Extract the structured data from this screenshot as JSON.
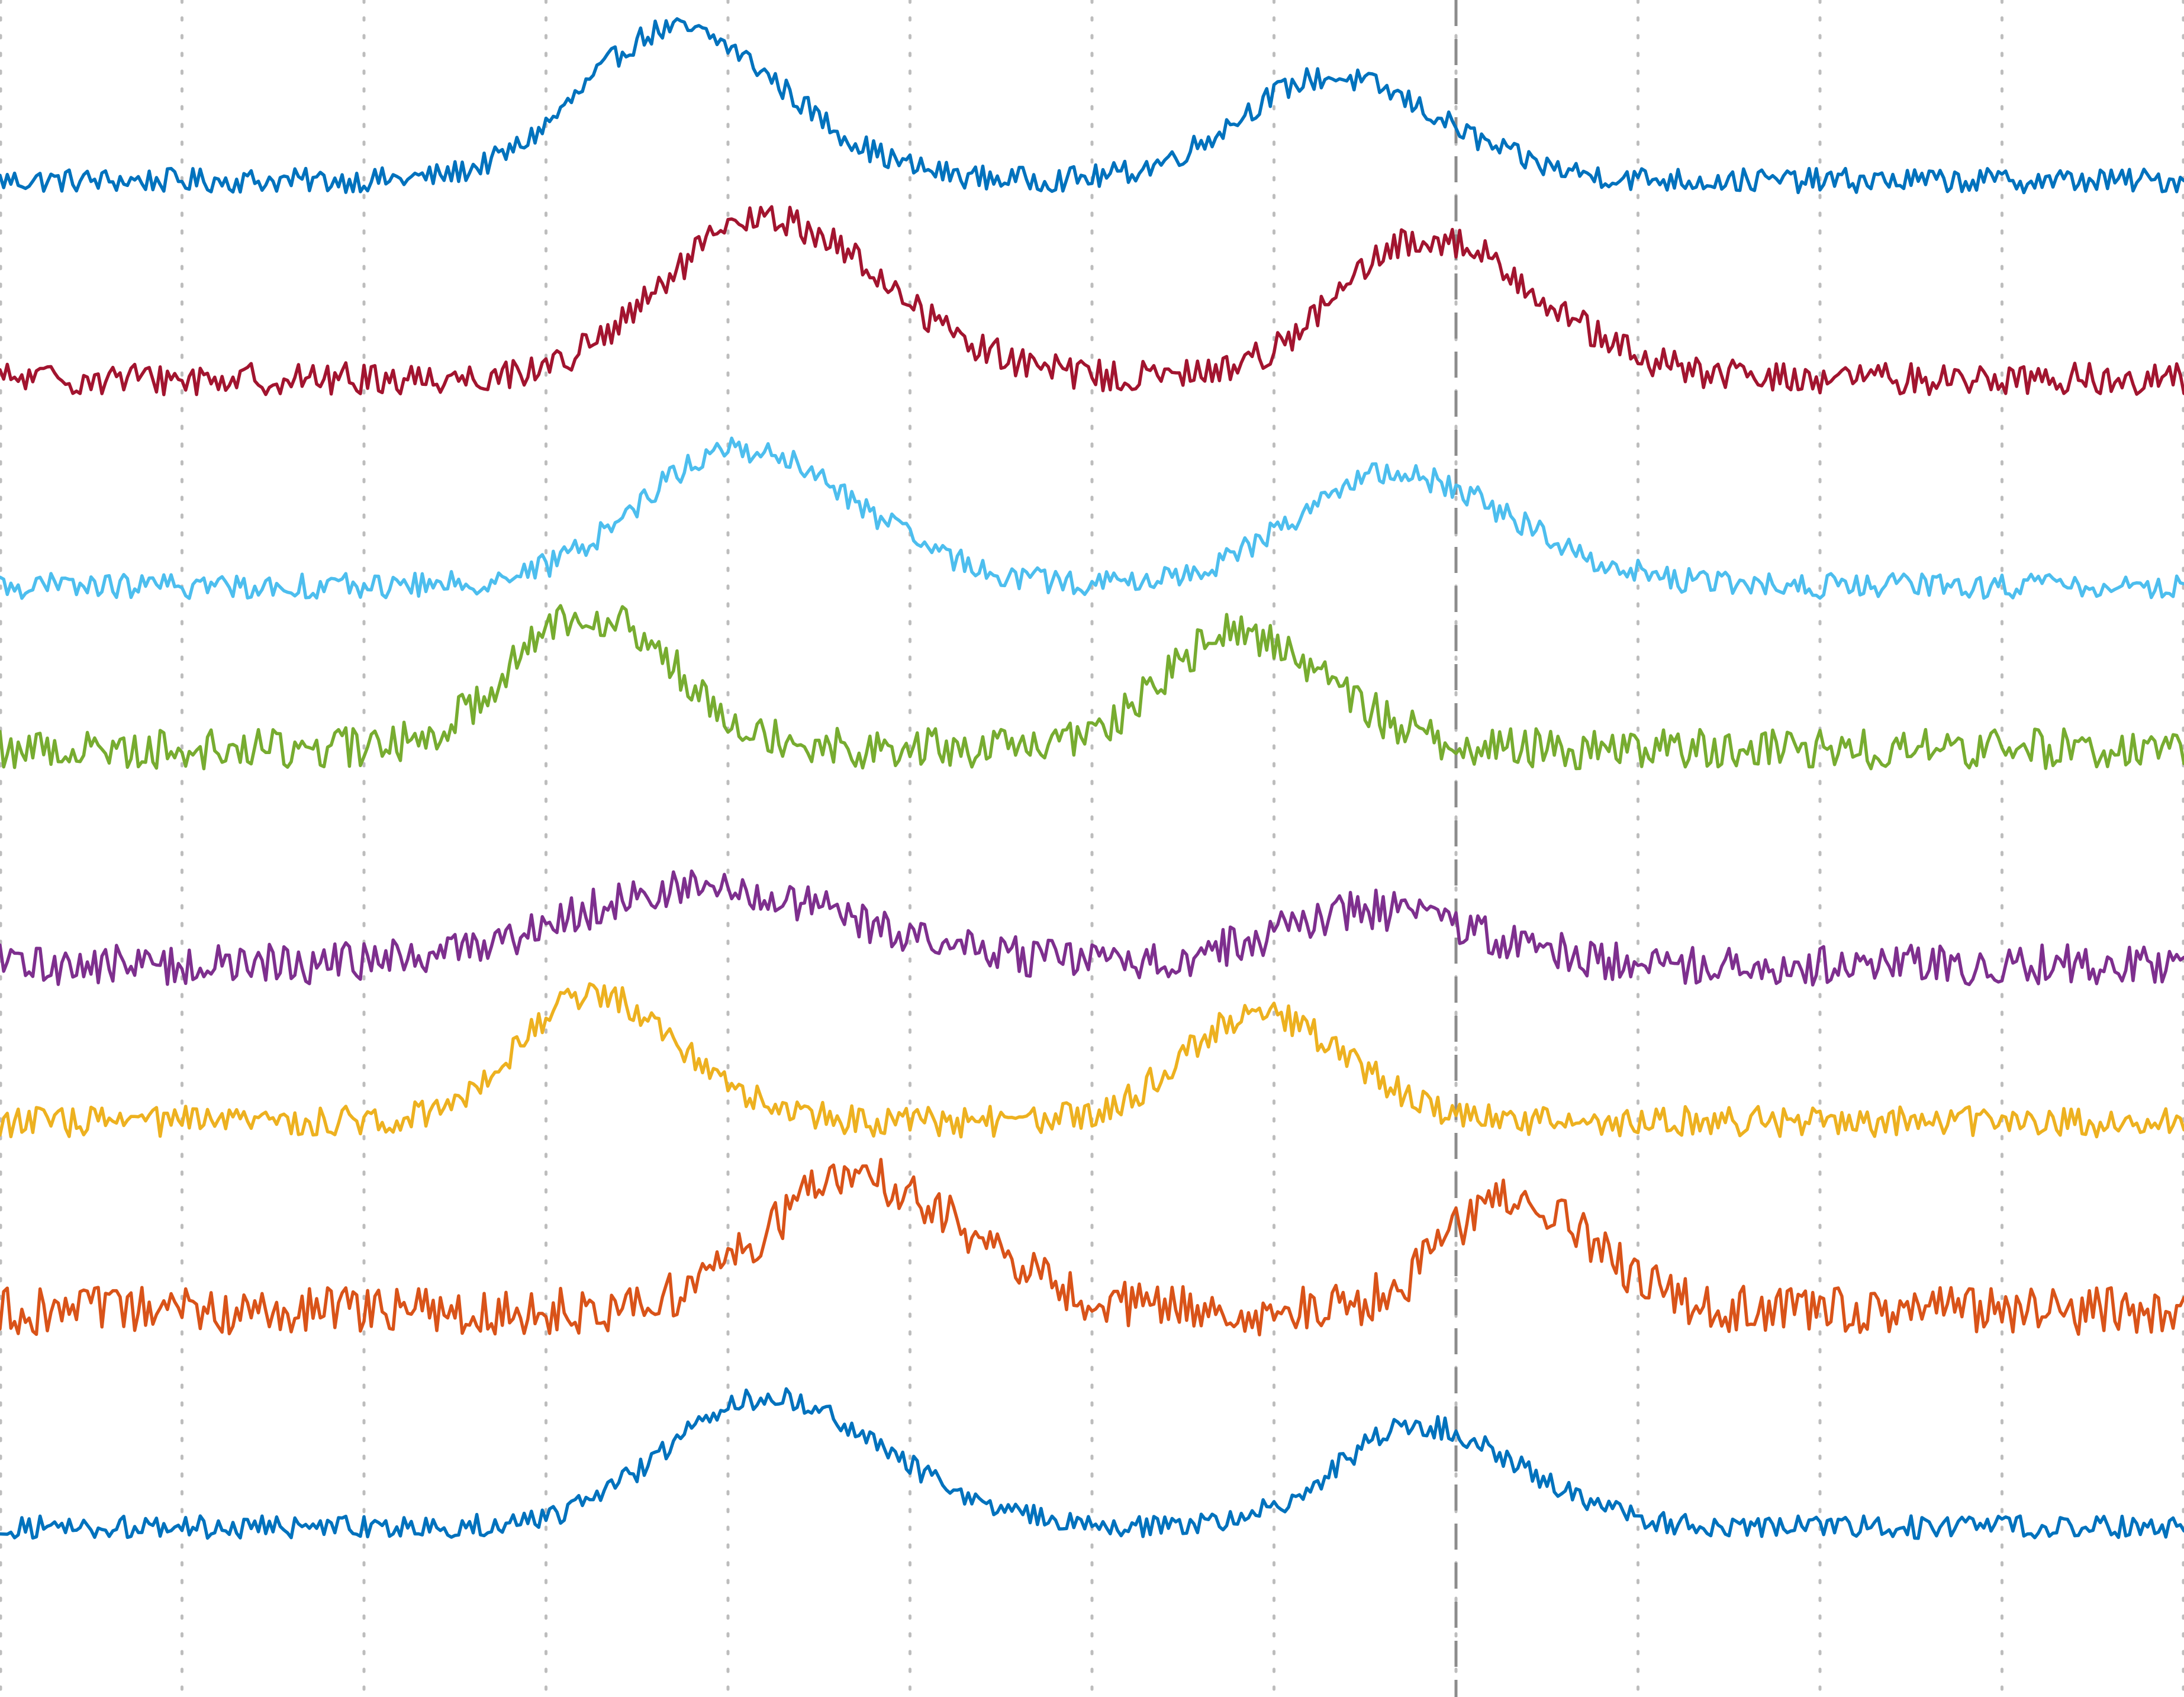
{
  "chart_data": {
    "type": "line",
    "title": "",
    "xlabel": "",
    "ylabel": "",
    "xlim": [
      0,
      1200
    ],
    "grid": true,
    "legend": "none",
    "x_gridlines": [
      0,
      100,
      200,
      300,
      400,
      500,
      600,
      700,
      800,
      900,
      1000,
      1100,
      1200
    ],
    "vertical_marker_x": 800,
    "series": [
      {
        "color": "#0072bd",
        "baseline": 0.0,
        "noise": 0.1,
        "peaks": [
          {
            "x": 370,
            "height": 1.25,
            "width": 55
          },
          {
            "x": 730,
            "height": 0.85,
            "width": 55
          }
        ]
      },
      {
        "color": "#a2142f",
        "baseline": 0.0,
        "noise": 0.12,
        "peaks": [
          {
            "x": 420,
            "height": 1.2,
            "width": 60
          },
          {
            "x": 785,
            "height": 1.05,
            "width": 55
          }
        ]
      },
      {
        "color": "#4dbeee",
        "baseline": 0.0,
        "noise": 0.1,
        "peaks": [
          {
            "x": 405,
            "height": 1.1,
            "width": 60
          },
          {
            "x": 765,
            "height": 0.9,
            "width": 60
          }
        ]
      },
      {
        "color": "#77ac30",
        "baseline": 0.0,
        "noise": 0.15,
        "peaks": [
          {
            "x": 320,
            "height": 1.0,
            "width": 45
          },
          {
            "x": 680,
            "height": 0.85,
            "width": 45
          }
        ]
      },
      {
        "color": "#7e2f8e",
        "baseline": 0.0,
        "noise": 0.2,
        "peaks": [
          {
            "x": 380,
            "height": 0.75,
            "width": 80
          },
          {
            "x": 750,
            "height": 0.55,
            "width": 55
          }
        ]
      },
      {
        "color": "#edb120",
        "baseline": 0.0,
        "noise": 0.12,
        "peaks": [
          {
            "x": 325,
            "height": 1.0,
            "width": 45
          },
          {
            "x": 690,
            "height": 0.85,
            "width": 45
          }
        ]
      },
      {
        "color": "#d95319",
        "baseline": 0.0,
        "noise": 0.18,
        "peaks": [
          {
            "x": 470,
            "height": 1.0,
            "width": 55
          },
          {
            "x": 830,
            "height": 0.85,
            "width": 40
          }
        ]
      },
      {
        "color": "#0072bd",
        "baseline": 0.0,
        "noise": 0.1,
        "peaks": [
          {
            "x": 420,
            "height": 1.15,
            "width": 60
          },
          {
            "x": 780,
            "height": 0.9,
            "width": 50
          }
        ]
      }
    ]
  }
}
